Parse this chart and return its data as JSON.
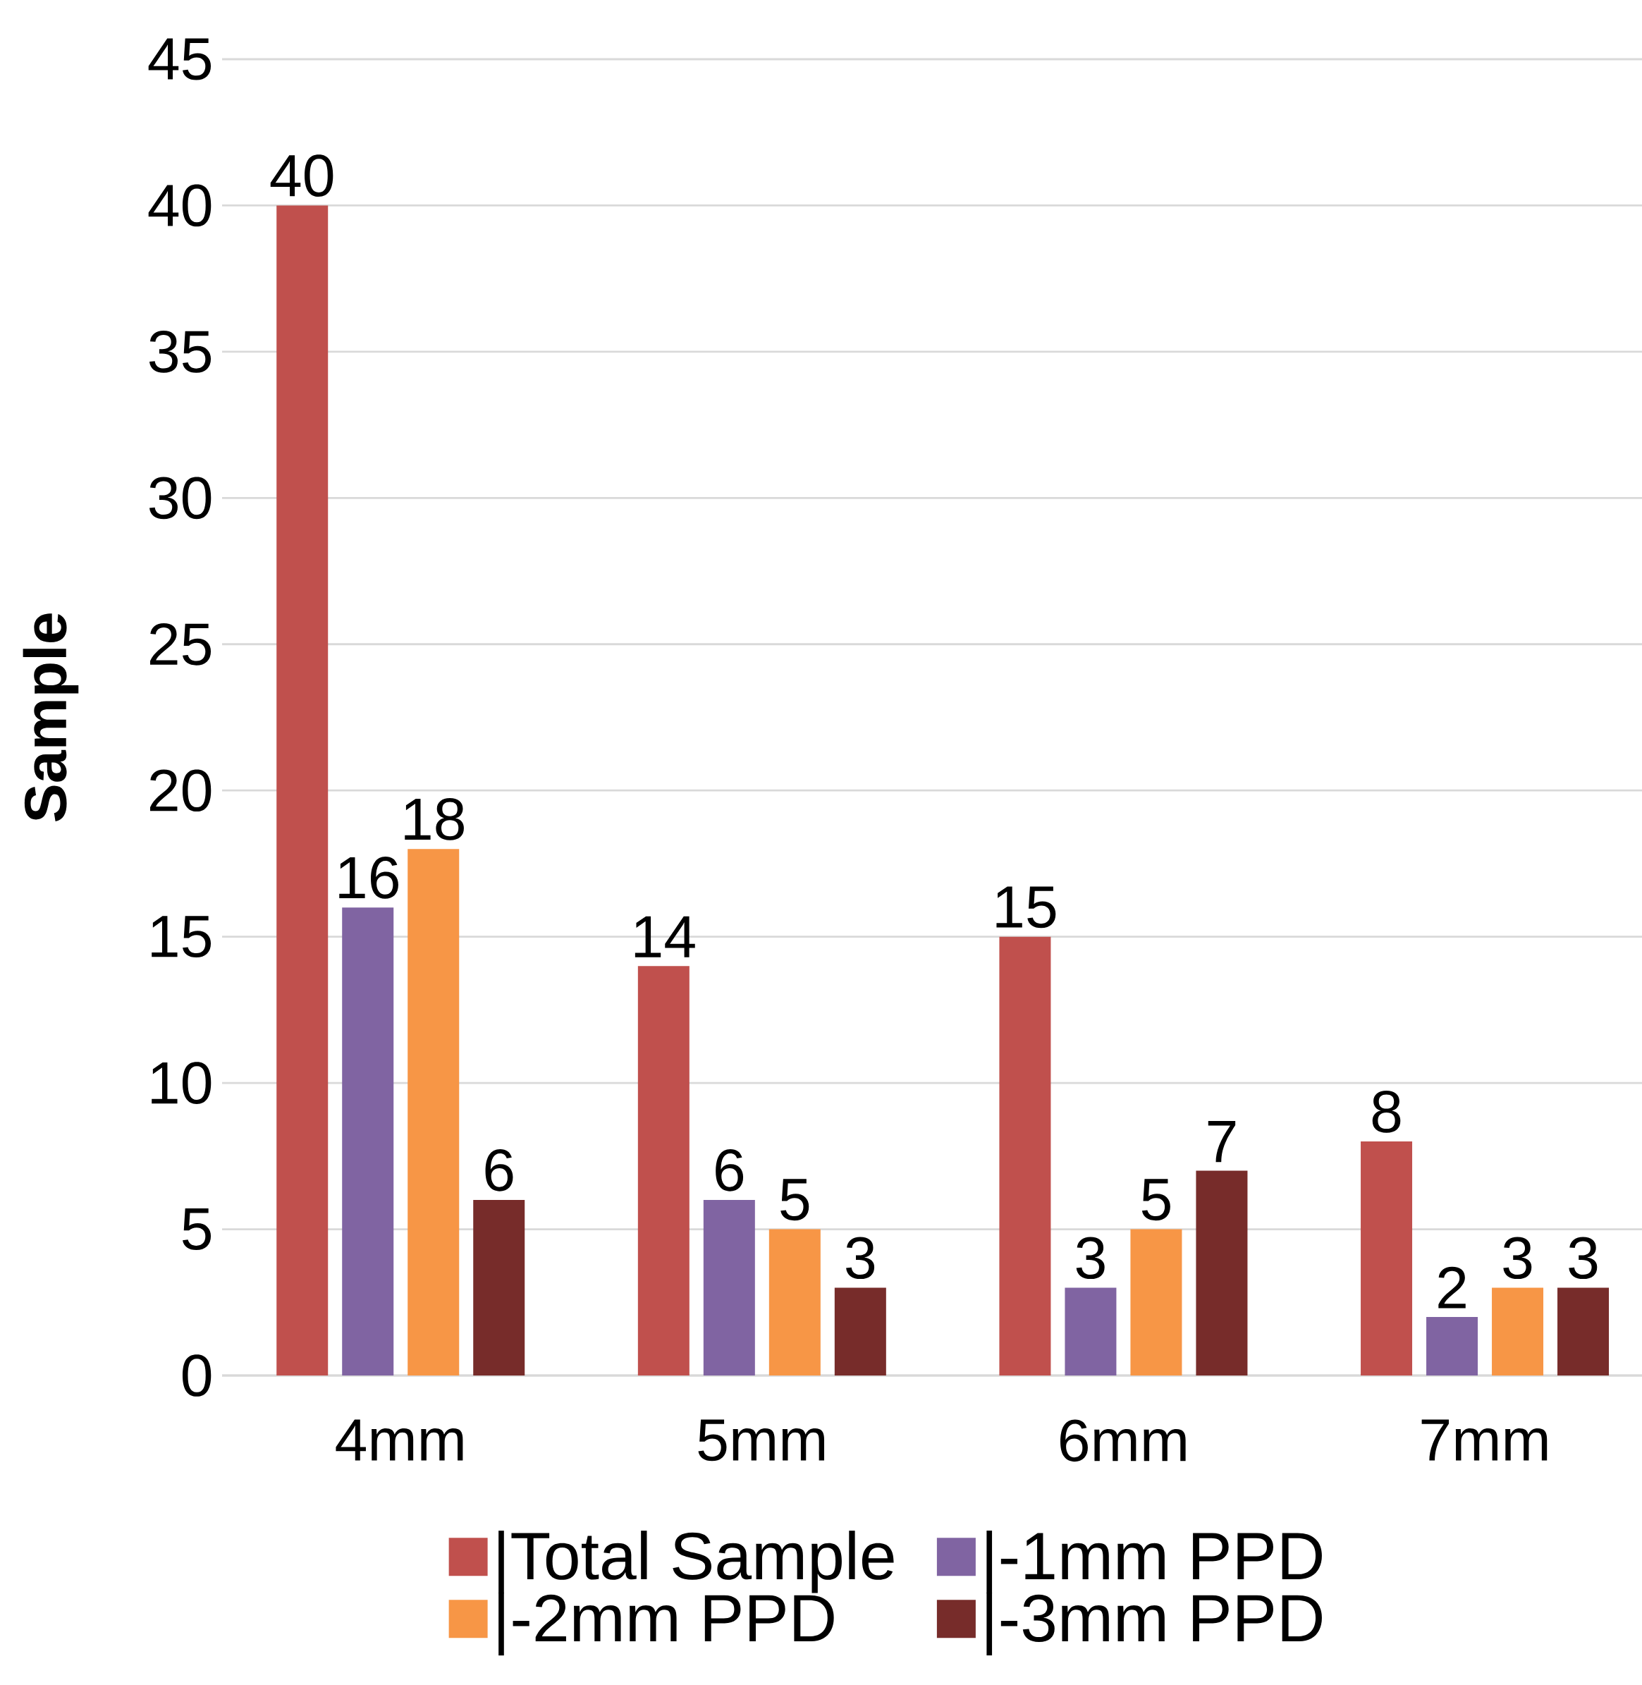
{
  "chart_data": {
    "type": "bar",
    "ylabel": "Sample",
    "categories": [
      "4mm",
      "5mm",
      "6mm",
      "7mm"
    ],
    "series": [
      {
        "name": "|Total Sample",
        "color": "#c0504d",
        "values": [
          40,
          14,
          15,
          8
        ]
      },
      {
        "name": "|-1mm PPD",
        "color": "#8064a2",
        "values": [
          16,
          6,
          3,
          2
        ]
      },
      {
        "name": "|-2mm PPD",
        "color": "#f79646",
        "values": [
          18,
          5,
          5,
          3
        ]
      },
      {
        "name": "|-3mm PPD",
        "color": "#772c2a",
        "values": [
          6,
          3,
          7,
          3
        ]
      }
    ],
    "ylim": [
      0,
      45
    ],
    "yticks": [
      0,
      5,
      10,
      15,
      20,
      25,
      30,
      35,
      40,
      45
    ],
    "grid": "y",
    "legend": "bottom",
    "data_labels": true
  }
}
